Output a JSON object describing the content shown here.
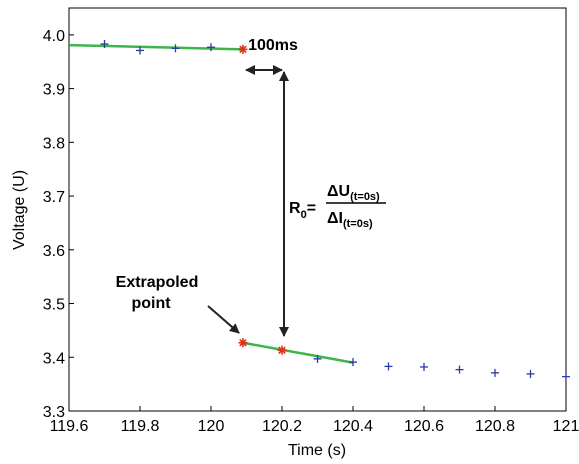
{
  "chart_data": {
    "type": "scatter",
    "xlabel": "Time (s)",
    "ylabel": "Voltage (U)",
    "xlim": [
      119.6,
      121.0
    ],
    "ylim": [
      3.3,
      4.05
    ],
    "x_ticks": [
      "119.6",
      "119.8",
      "120",
      "120.2",
      "120.4",
      "120.6",
      "120.8",
      "121"
    ],
    "y_ticks": [
      "3.3",
      "3.4",
      "3.5",
      "3.6",
      "3.7",
      "3.8",
      "3.9",
      "4.0"
    ],
    "grid": false,
    "series": [
      {
        "marker": "plus",
        "color": "#2a3aa0",
        "points": [
          {
            "x": 119.7,
            "y": 3.983
          },
          {
            "x": 119.8,
            "y": 3.971
          },
          {
            "x": 119.9,
            "y": 3.975
          },
          {
            "x": 120.0,
            "y": 3.977
          },
          {
            "x": 120.3,
            "y": 3.397
          },
          {
            "x": 120.4,
            "y": 3.391
          },
          {
            "x": 120.5,
            "y": 3.383
          },
          {
            "x": 120.6,
            "y": 3.382
          },
          {
            "x": 120.7,
            "y": 3.377
          },
          {
            "x": 120.8,
            "y": 3.371
          },
          {
            "x": 120.9,
            "y": 3.369
          },
          {
            "x": 121.0,
            "y": 3.364
          }
        ]
      },
      {
        "marker": "star",
        "color": "#e03010",
        "points": [
          {
            "x": 120.09,
            "y": 3.973
          },
          {
            "x": 120.09,
            "y": 3.427
          },
          {
            "x": 120.2,
            "y": 3.413
          }
        ]
      }
    ],
    "fit_lines": [
      {
        "color": "#3cb54a",
        "x": [
          119.6,
          120.09
        ],
        "y": [
          3.981,
          3.973
        ]
      },
      {
        "color": "#3cb54a",
        "x": [
          120.09,
          120.4
        ],
        "y": [
          3.427,
          3.39
        ]
      }
    ],
    "annotations": {
      "interval_label": "100ms",
      "extrapoled_label_line1": "Extrapoled",
      "extrapoled_label_line2": "point",
      "formula_lhs": "R",
      "formula_lhs_sub": "0",
      "formula_eq": "=",
      "formula_num": "ΔU",
      "formula_num_sub": "(t=0s)",
      "formula_den": "ΔI",
      "formula_den_sub": "(t=0s)"
    },
    "colors": {
      "axis": "#000000",
      "arrow": "#222222"
    }
  }
}
